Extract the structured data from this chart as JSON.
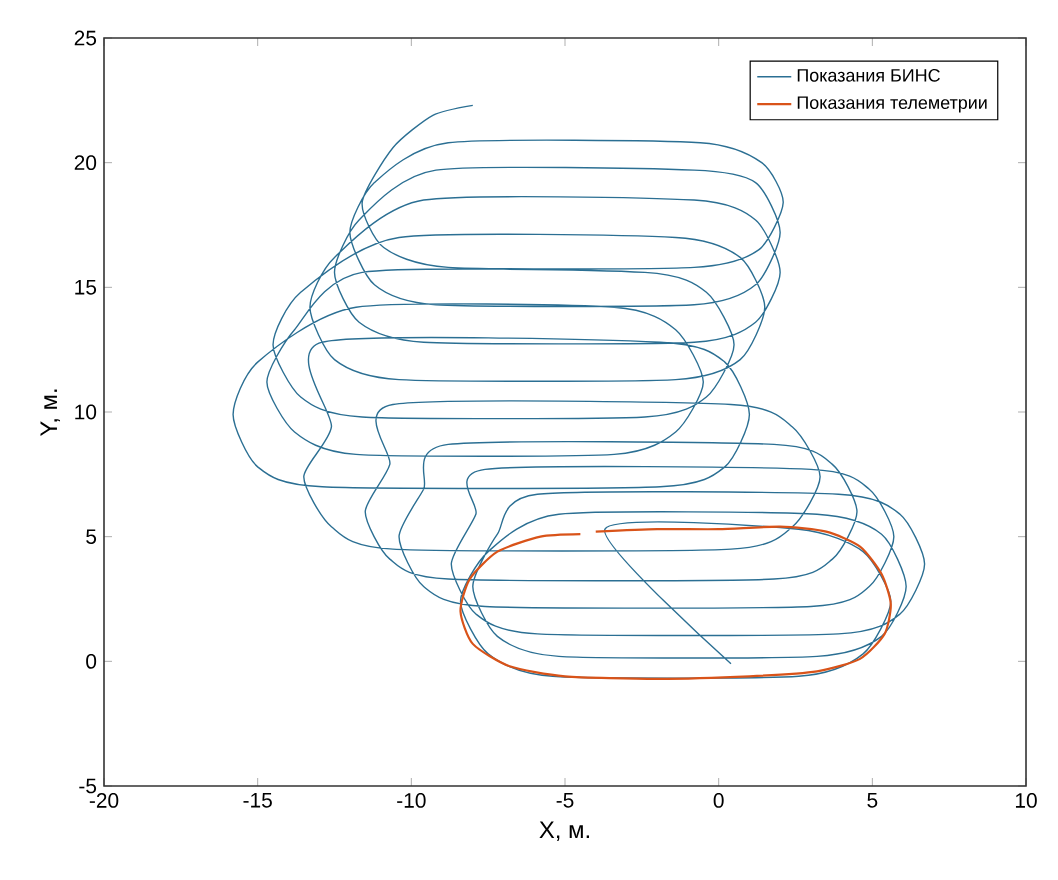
{
  "chart_data": {
    "type": "line",
    "xlabel": "X, м.",
    "ylabel": "Y, м.",
    "xlim": [
      -20,
      10
    ],
    "xticks": [
      -20,
      -15,
      -10,
      -5,
      0,
      5,
      10
    ],
    "ylim": [
      -5,
      25
    ],
    "yticks": [
      -5,
      0,
      5,
      10,
      15,
      20,
      25
    ],
    "legend": "top right",
    "series": [
      {
        "name": "Показания БИНС",
        "color": "#2b6f93",
        "x": [
          0.4,
          -3.7,
          2.6,
          4.7,
          5.6,
          4.7,
          2.6,
          -5.4,
          -7.5,
          -8.4,
          -7.5,
          -5.2,
          3.2,
          5.3,
          6.1,
          5.3,
          3.2,
          -5.2,
          -7.2,
          -8.0,
          -7.2,
          -5.9,
          3.9,
          5.9,
          6.7,
          5.9,
          3.9,
          -5.9,
          -7.9,
          -8.7,
          -7.9,
          -7.6,
          3.0,
          4.9,
          5.7,
          4.9,
          3.0,
          -7.6,
          -9.6,
          -10.4,
          -9.6,
          -8.8,
          1.8,
          3.7,
          4.5,
          3.7,
          1.8,
          -8.8,
          -10.7,
          -11.5,
          -10.7,
          -10.6,
          0.4,
          2.4,
          3.3,
          2.4,
          0.4,
          -10.6,
          -12.6,
          -13.5,
          -12.6,
          -12.9,
          -1.9,
          0.2,
          1.0,
          0.2,
          -1.9,
          -12.9,
          -15.0,
          -15.8,
          -15.0,
          -11.8,
          -3.4,
          -1.4,
          -0.5,
          -1.4,
          -3.4,
          -11.8,
          -13.8,
          -14.7,
          -13.8,
          -11.6,
          -2.4,
          -0.4,
          0.5,
          -0.4,
          -2.4,
          -11.6,
          -13.6,
          -14.5,
          -13.6,
          -10.4,
          -1.4,
          0.7,
          1.5,
          0.7,
          -1.4,
          -10.4,
          -12.5,
          -13.3,
          -12.5,
          -9.6,
          -0.8,
          1.2,
          2.0,
          1.2,
          -0.8,
          -9.6,
          -11.7,
          -12.5,
          -11.7,
          -9.2,
          -0.8,
          1.2,
          2.0,
          1.2,
          -0.8,
          -9.2,
          -11.2,
          -12.0,
          -11.2,
          -8.8,
          -0.6,
          1.4,
          2.1,
          1.3,
          -0.8,
          -8.8,
          -10.9,
          -11.6,
          -10.6,
          -9.3,
          -8.0
        ],
        "values": [
          -0.1,
          5.3,
          5.3,
          4.4,
          2.4,
          0.3,
          -0.6,
          -0.6,
          0.3,
          2.4,
          4.4,
          5.9,
          5.9,
          5.1,
          3.0,
          1.0,
          0.2,
          0.2,
          1.0,
          3.0,
          5.1,
          6.7,
          6.7,
          5.9,
          3.9,
          1.9,
          1.1,
          1.1,
          1.9,
          3.9,
          5.9,
          7.7,
          7.7,
          6.9,
          5.0,
          3.0,
          2.2,
          2.2,
          3.0,
          5.0,
          6.9,
          8.7,
          8.7,
          7.9,
          6.0,
          4.1,
          3.3,
          3.3,
          4.1,
          6.0,
          7.9,
          10.3,
          10.3,
          9.4,
          7.4,
          5.4,
          4.5,
          4.5,
          5.4,
          7.4,
          9.4,
          12.8,
          12.8,
          12.0,
          9.9,
          7.8,
          7.0,
          7.0,
          7.8,
          9.9,
          12.0,
          14.2,
          14.2,
          13.3,
          11.2,
          9.2,
          8.3,
          8.3,
          9.2,
          11.2,
          13.3,
          15.6,
          15.6,
          14.8,
          12.7,
          10.6,
          9.8,
          9.8,
          10.6,
          12.7,
          14.8,
          17.0,
          17.0,
          16.2,
          14.2,
          12.1,
          11.3,
          11.3,
          12.1,
          14.2,
          16.2,
          18.5,
          18.5,
          17.7,
          15.6,
          13.6,
          12.8,
          12.8,
          13.6,
          15.6,
          17.7,
          19.7,
          19.7,
          19.2,
          17.2,
          15.1,
          14.3,
          14.3,
          15.1,
          17.2,
          19.2,
          20.8,
          20.8,
          20.0,
          18.4,
          16.5,
          15.8,
          15.8,
          16.6,
          18.4,
          20.6,
          21.9,
          22.3
        ]
      },
      {
        "name": "Показания телеметрии",
        "color": "#d95319",
        "x": [
          -4.0,
          -2.0,
          0.0,
          2.0,
          3.5,
          4.6,
          5.3,
          5.6,
          5.4,
          4.6,
          3.2,
          1.0,
          -2.0,
          -5.0,
          -6.8,
          -8.0,
          -8.4,
          -8.1,
          -7.2,
          -5.8,
          -4.5
        ],
        "values": [
          5.2,
          5.3,
          5.3,
          5.4,
          5.2,
          4.6,
          3.5,
          2.3,
          1.1,
          0.1,
          -0.4,
          -0.6,
          -0.7,
          -0.6,
          -0.2,
          0.7,
          2.0,
          3.3,
          4.4,
          5.0,
          5.1
        ]
      }
    ]
  }
}
